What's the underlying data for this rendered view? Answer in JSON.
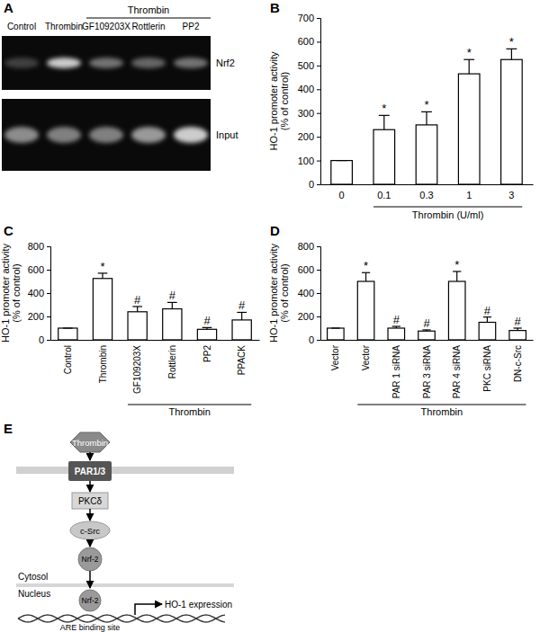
{
  "chart_data": [
    {
      "type": "bar",
      "panel": "B",
      "categories": [
        "0",
        "0.1",
        "0.3",
        "1",
        "3"
      ],
      "values": [
        100,
        230,
        250,
        465,
        525
      ],
      "errors": [
        0,
        60,
        55,
        60,
        45
      ],
      "significance": [
        null,
        "*",
        "*",
        "*",
        "*"
      ],
      "group": {
        "label": "Thrombin (U/ml)",
        "start": 1,
        "end": 4
      },
      "y_label": [
        "HO-1 promoter activity",
        "(% of control)"
      ],
      "ylim": [
        0,
        700
      ],
      "yticks": [
        0,
        100,
        200,
        300,
        400,
        500,
        600,
        700
      ],
      "color": "#ffffff"
    },
    {
      "type": "bar",
      "panel": "C",
      "categories": [
        "Control",
        "Thrombin",
        "GF109203X",
        "Rottlerin",
        "PP2",
        "PPACK"
      ],
      "values": [
        100,
        525,
        240,
        265,
        90,
        170
      ],
      "errors": [
        0,
        45,
        45,
        55,
        15,
        65
      ],
      "significance": [
        null,
        "*",
        "#",
        "#",
        "#",
        "#"
      ],
      "group": {
        "label": "Thrombin",
        "start": 2,
        "end": 5
      },
      "y_label": [
        "HO-1 promoter activity",
        "(% of control)"
      ],
      "ylim": [
        0,
        800
      ],
      "yticks": [
        0,
        200,
        400,
        600,
        800
      ],
      "color": "#ffffff"
    },
    {
      "type": "bar",
      "panel": "D",
      "categories": [
        "Vector",
        "Vector",
        "PAR 1 siRNA",
        "PAR 3 siRNA",
        "PAR 4 siRNA",
        "PKC siRNA",
        "DN-c-Src"
      ],
      "values": [
        100,
        500,
        100,
        75,
        500,
        150,
        80
      ],
      "errors": [
        0,
        75,
        15,
        10,
        85,
        45,
        20
      ],
      "significance": [
        null,
        "*",
        "#",
        "#",
        "*",
        "#",
        "#"
      ],
      "group": {
        "label": "Thrombin",
        "start": 1,
        "end": 6
      },
      "y_label": [
        "HO-1 promoter activity",
        "(% of control)"
      ],
      "ylim": [
        0,
        800
      ],
      "yticks": [
        0,
        200,
        400,
        600,
        800
      ],
      "color": "#ffffff"
    }
  ],
  "gel": {
    "panel": "A",
    "lanes": [
      "Control",
      "Thrombin",
      "GF109203X",
      "Rottlerin",
      "PP2"
    ],
    "group": {
      "label": "Thrombin",
      "start": 2,
      "end": 4
    },
    "rows": [
      {
        "label": "Nrf2",
        "intensity": [
          0.25,
          0.8,
          0.45,
          0.4,
          0.45
        ]
      },
      {
        "label": "Input",
        "intensity": [
          0.55,
          0.5,
          0.5,
          0.6,
          0.8
        ]
      }
    ]
  },
  "diagram": {
    "panel": "E",
    "nodes": [
      "Thrombin",
      "PAR1/3",
      "PKCδ",
      "c-Src",
      "Nrf-2",
      "Nrf-2"
    ],
    "compartments": [
      "Cytosol",
      "Nucleus"
    ],
    "site": "ARE binding site",
    "output": "HO-1 expression"
  }
}
